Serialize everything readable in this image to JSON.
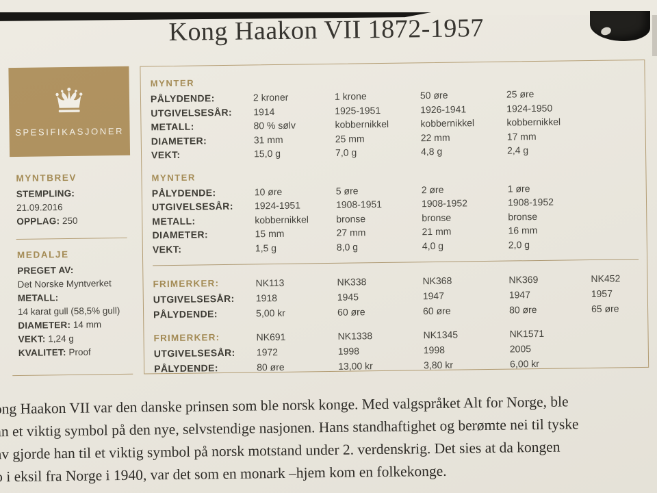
{
  "page": {
    "title": "Kong Haakon VII 1872-1957"
  },
  "colors": {
    "gold": "#ac8d58",
    "gold_text": "#a1874e",
    "border": "#b29a6e",
    "page_bg": "#edeae1",
    "text_dark": "#393731",
    "serif_text": "#262420"
  },
  "sidebar": {
    "header": "SPESIFIKASJONER",
    "crown_icon": "crown-icon",
    "myntbrev": {
      "heading": "MYNTBREV",
      "rows": [
        {
          "label": "STEMPLING:",
          "value": "21.09.2016",
          "inline": false
        },
        {
          "label": "OPPLAG:",
          "value": "250",
          "inline": true
        }
      ]
    },
    "medalje": {
      "heading": "MEDALJE",
      "rows": [
        {
          "label": "PREGET AV:",
          "value": "Det Norske Myntverket",
          "inline": false
        },
        {
          "label": "METALL:",
          "value": "14 karat gull (58,5% gull)",
          "inline": false
        },
        {
          "label": "DIAMETER:",
          "value": "14 mm",
          "inline": true
        },
        {
          "label": "VEKT:",
          "value": "1,24 g",
          "inline": true
        },
        {
          "label": "KVALITET:",
          "value": "Proof",
          "inline": true
        }
      ]
    }
  },
  "table": {
    "coin_sections": [
      {
        "heading": "MYNTER",
        "rows": [
          {
            "label": "PÅLYDENDE:",
            "values": [
              "2 kroner",
              "1 krone",
              "50 øre",
              "25 øre"
            ]
          },
          {
            "label": "UTGIVELSESÅR:",
            "values": [
              "1914",
              "1925-1951",
              "1926-1941",
              "1924-1950"
            ]
          },
          {
            "label": "METALL:",
            "values": [
              "80 % sølv",
              "kobbernikkel",
              "kobbernikkel",
              "kobbernikkel"
            ]
          },
          {
            "label": "DIAMETER:",
            "values": [
              "31 mm",
              "25 mm",
              "22 mm",
              "17 mm"
            ]
          },
          {
            "label": "VEKT:",
            "values": [
              "15,0 g",
              "7,0 g",
              "4,8 g",
              "2,4 g"
            ]
          }
        ]
      },
      {
        "heading": "MYNTER",
        "rows": [
          {
            "label": "PÅLYDENDE:",
            "values": [
              "10 øre",
              "5 øre",
              "2 øre",
              "1 øre"
            ]
          },
          {
            "label": "UTGIVELSESÅR:",
            "values": [
              "1924-1951",
              "1908-1951",
              "1908-1952",
              "1908-1952"
            ]
          },
          {
            "label": "METALL:",
            "values": [
              "kobbernikkel",
              "bronse",
              "bronse",
              "bronse"
            ]
          },
          {
            "label": "DIAMETER:",
            "values": [
              "15 mm",
              "27 mm",
              "21 mm",
              "16 mm"
            ]
          },
          {
            "label": "VEKT:",
            "values": [
              "1,5 g",
              "8,0 g",
              "4,0 g",
              "2,0 g"
            ]
          }
        ]
      }
    ],
    "stamp_sections": [
      {
        "heading": "FRIMERKER:",
        "codes": [
          "NK113",
          "NK338",
          "NK368",
          "NK369",
          "NK452"
        ],
        "rows": [
          {
            "label": "UTGIVELSESÅR:",
            "values": [
              "1918",
              "1945",
              "1947",
              "1947",
              "1957"
            ]
          },
          {
            "label": "PÅLYDENDE:",
            "values": [
              "5,00 kr",
              "60 øre",
              "60 øre",
              "80 øre",
              "65 øre"
            ]
          }
        ]
      },
      {
        "heading": "FRIMERKER:",
        "codes": [
          "NK691",
          "NK1338",
          "NK1345",
          "NK1571"
        ],
        "rows": [
          {
            "label": "UTGIVELSESÅR:",
            "values": [
              "1972",
              "1998",
              "1998",
              "2005"
            ]
          },
          {
            "label": "PÅLYDENDE:",
            "values": [
              "80 øre",
              "13,00 kr",
              "3,80 kr",
              "6,00 kr"
            ]
          }
        ]
      }
    ]
  },
  "paragraph": {
    "lines": [
      "ong Haakon VII var den danske prinsen som ble norsk konge. Med valgspråket Alt for Norge, ble",
      "an et viktig symbol på den nye, selvstendige nasjonen. Hans standhaftighet og berømte nei til tyske",
      "av gjorde han til et viktig symbol på norsk motstand under 2. verdenskrig. Det sies at da kongen",
      "o i eksil fra Norge i 1940, var det som en monark –hjem kom en folkekonge."
    ]
  }
}
